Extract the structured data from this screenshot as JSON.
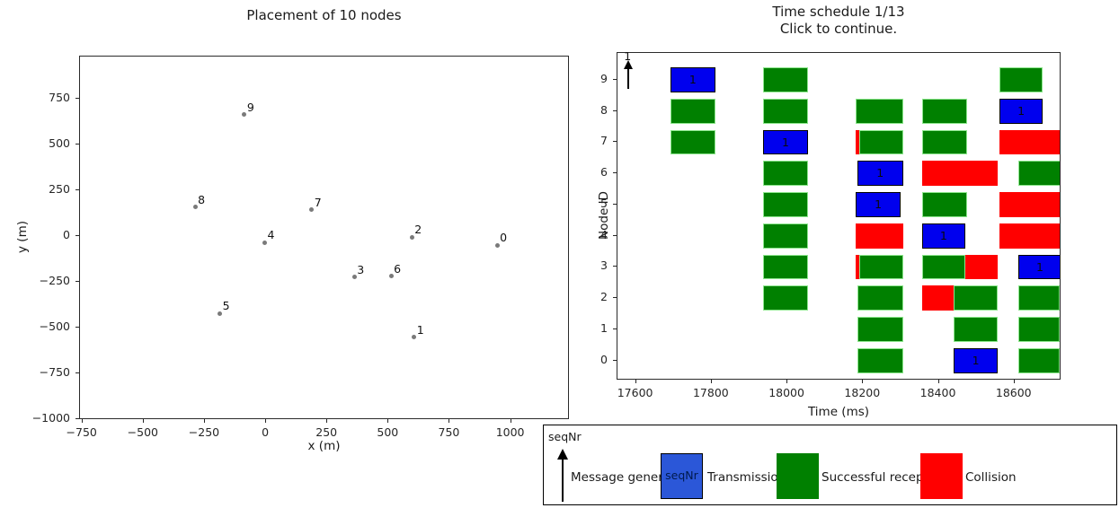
{
  "palette": {
    "blue": "#0000ee",
    "green": "#008000",
    "red": "#ff0000",
    "legend_blue": "#2b57d8",
    "node_dot_gray": "#7a7a7a",
    "axis_color": "#262626"
  },
  "chart_data": [
    {
      "type": "scatter",
      "title": "Placement of 10 nodes",
      "xlabel": "x (m)",
      "ylabel": "y (m)",
      "xlim": [
        -760,
        1240
      ],
      "ylim": [
        -1005,
        980
      ],
      "grid": false,
      "xtick_values": [
        -750,
        -500,
        -250,
        0,
        250,
        500,
        750,
        1000
      ],
      "xtick_labels": [
        "−750",
        "−500",
        "−250",
        "0",
        "250",
        "500",
        "750",
        "1000"
      ],
      "ytick_values": [
        750,
        500,
        250,
        0,
        -250,
        -500,
        -750,
        -1000
      ],
      "ytick_labels": [
        "750",
        "500",
        "250",
        "0",
        "−250",
        "−500",
        "−750",
        "−1000"
      ],
      "points": [
        {
          "id": "0",
          "x": 943,
          "y": -50
        },
        {
          "id": "1",
          "x": 604,
          "y": -554
        },
        {
          "id": "2",
          "x": 595,
          "y": -6
        },
        {
          "id": "3",
          "x": 360,
          "y": -224
        },
        {
          "id": "4",
          "x": -6,
          "y": -36
        },
        {
          "id": "5",
          "x": -189,
          "y": -423
        },
        {
          "id": "6",
          "x": 510,
          "y": -219
        },
        {
          "id": "7",
          "x": 186,
          "y": 144
        },
        {
          "id": "8",
          "x": -290,
          "y": 157
        },
        {
          "id": "9",
          "x": -89,
          "y": 663
        }
      ]
    },
    {
      "type": "broken_barh_schedule",
      "title_line1": "Time schedule 1/13",
      "title_line2": "Click to continue.",
      "xlabel": "Time (ms)",
      "ylabel": "Node ID",
      "xlim": [
        17551,
        18724
      ],
      "ylim": [
        -0.64,
        9.86
      ],
      "bar_height": 0.8,
      "xtick_values": [
        17600,
        17800,
        18000,
        18200,
        18400,
        18600
      ],
      "xtick_labels": [
        "17600",
        "17800",
        "18000",
        "18200",
        "18400",
        "18600"
      ],
      "ytick_values": [
        0,
        1,
        2,
        3,
        4,
        5,
        6,
        7,
        8,
        9
      ],
      "ytick_labels": [
        "0",
        "1",
        "2",
        "3",
        "4",
        "5",
        "6",
        "7",
        "8",
        "9"
      ],
      "message_generation": {
        "time": 17580,
        "node": 9,
        "seq_label": "1"
      },
      "rows": [
        {
          "node": 9,
          "bars": [
            {
              "start": 17690,
              "end": 17810,
              "color": "blue",
              "label": "1"
            },
            {
              "start": 17935,
              "end": 18055,
              "color": "green"
            },
            {
              "start": 18560,
              "end": 18675,
              "color": "green"
            }
          ]
        },
        {
          "node": 8,
          "bars": [
            {
              "start": 17690,
              "end": 17810,
              "color": "green"
            },
            {
              "start": 17935,
              "end": 18055,
              "color": "green"
            },
            {
              "start": 18180,
              "end": 18305,
              "color": "green"
            },
            {
              "start": 18355,
              "end": 18475,
              "color": "green"
            },
            {
              "start": 18560,
              "end": 18675,
              "color": "blue",
              "label": "1"
            }
          ]
        },
        {
          "node": 7,
          "bars": [
            {
              "start": 17690,
              "end": 17810,
              "color": "green"
            },
            {
              "start": 17935,
              "end": 18055,
              "color": "blue",
              "label": "1"
            },
            {
              "start": 18180,
              "end": 18190,
              "color": "red"
            },
            {
              "start": 18190,
              "end": 18305,
              "color": "green"
            },
            {
              "start": 18355,
              "end": 18475,
              "color": "green"
            },
            {
              "start": 18560,
              "end": 18724,
              "color": "red"
            }
          ]
        },
        {
          "node": 6,
          "bars": [
            {
              "start": 17935,
              "end": 18055,
              "color": "green"
            },
            {
              "start": 18185,
              "end": 18305,
              "color": "blue",
              "label": "1"
            },
            {
              "start": 18355,
              "end": 18555,
              "color": "red"
            },
            {
              "start": 18610,
              "end": 18724,
              "color": "green"
            }
          ]
        },
        {
          "node": 5,
          "bars": [
            {
              "start": 17935,
              "end": 18055,
              "color": "green"
            },
            {
              "start": 18180,
              "end": 18300,
              "color": "blue",
              "label": "1"
            },
            {
              "start": 18355,
              "end": 18475,
              "color": "green"
            },
            {
              "start": 18560,
              "end": 18724,
              "color": "red"
            }
          ]
        },
        {
          "node": 4,
          "bars": [
            {
              "start": 17935,
              "end": 18055,
              "color": "green"
            },
            {
              "start": 18180,
              "end": 18305,
              "color": "red"
            },
            {
              "start": 18355,
              "end": 18470,
              "color": "blue",
              "label": "1"
            },
            {
              "start": 18560,
              "end": 18724,
              "color": "red"
            }
          ]
        },
        {
          "node": 3,
          "bars": [
            {
              "start": 17935,
              "end": 18055,
              "color": "green"
            },
            {
              "start": 18180,
              "end": 18190,
              "color": "red"
            },
            {
              "start": 18190,
              "end": 18305,
              "color": "green"
            },
            {
              "start": 18355,
              "end": 18470,
              "color": "green"
            },
            {
              "start": 18470,
              "end": 18555,
              "color": "red"
            },
            {
              "start": 18610,
              "end": 18724,
              "color": "blue",
              "label": "1"
            }
          ]
        },
        {
          "node": 2,
          "bars": [
            {
              "start": 17935,
              "end": 18055,
              "color": "green"
            },
            {
              "start": 18185,
              "end": 18305,
              "color": "green"
            },
            {
              "start": 18355,
              "end": 18440,
              "color": "red"
            },
            {
              "start": 18440,
              "end": 18555,
              "color": "green"
            },
            {
              "start": 18610,
              "end": 18720,
              "color": "green"
            }
          ]
        },
        {
          "node": 1,
          "bars": [
            {
              "start": 18185,
              "end": 18305,
              "color": "green"
            },
            {
              "start": 18440,
              "end": 18555,
              "color": "green"
            },
            {
              "start": 18610,
              "end": 18720,
              "color": "green"
            }
          ]
        },
        {
          "node": 0,
          "bars": [
            {
              "start": 18185,
              "end": 18305,
              "color": "green"
            },
            {
              "start": 18440,
              "end": 18555,
              "color": "blue",
              "label": "1"
            },
            {
              "start": 18610,
              "end": 18720,
              "color": "green"
            }
          ]
        }
      ]
    }
  ],
  "legend": {
    "corner_label": "seqNr",
    "items": [
      {
        "symbol": "arrow",
        "label": "Message generation"
      },
      {
        "symbol": "box",
        "color_key": "legend_blue",
        "box_text": "seqNr",
        "label": "Transmission"
      },
      {
        "symbol": "box",
        "color_key": "green",
        "label": "Successful reception"
      },
      {
        "symbol": "box",
        "color_key": "red",
        "label": "Collision"
      }
    ]
  }
}
